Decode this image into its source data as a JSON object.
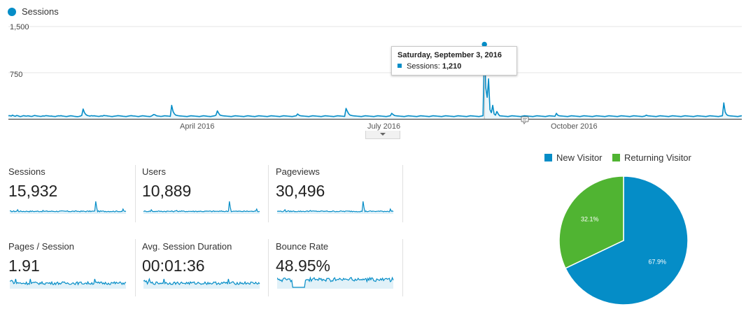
{
  "main_chart": {
    "legend_label": "Sessions",
    "legend_color": "#058dc7",
    "y_ticks": [
      "1,500",
      "750"
    ],
    "x_ticks": [
      "April 2016",
      "July 2016",
      "October 2016"
    ],
    "tooltip": {
      "date": "Saturday, September 3, 2016",
      "series_label": "Sessions:",
      "series_value": "1,210"
    }
  },
  "chart_data": {
    "type": "line",
    "title": "",
    "series": [
      {
        "name": "Sessions",
        "color": "#058dc7",
        "values": [
          50,
          52,
          45,
          60,
          48,
          42,
          55,
          50,
          40,
          38,
          45,
          52,
          48,
          44,
          50,
          46,
          42,
          40,
          48,
          55,
          50,
          46,
          44,
          40,
          42,
          48,
          45,
          52,
          50,
          48,
          44,
          46,
          42,
          40,
          38,
          45,
          50,
          48,
          52,
          46,
          44,
          40,
          38,
          42,
          46,
          50,
          48,
          44,
          40,
          38,
          36,
          40,
          45,
          55,
          160,
          100,
          70,
          55,
          50,
          45,
          52,
          48,
          50,
          46,
          44,
          40,
          42,
          48,
          45,
          55,
          52,
          50,
          46,
          44,
          40,
          38,
          42,
          45,
          48,
          52,
          50,
          48,
          45,
          42,
          40,
          38,
          42,
          46,
          50,
          52,
          48,
          46,
          44,
          40,
          38,
          42,
          46,
          50,
          48,
          45,
          42,
          40,
          38,
          42,
          55,
          70,
          65,
          50,
          46,
          44,
          40,
          42,
          46,
          50,
          48,
          46,
          44,
          40,
          220,
          120,
          80,
          60,
          55,
          50,
          48,
          46,
          44,
          42,
          40,
          38,
          42,
          46,
          50,
          48,
          46,
          44,
          42,
          40,
          38,
          42,
          46,
          50,
          48,
          45,
          42,
          40,
          38,
          42,
          46,
          50,
          60,
          130,
          90,
          60,
          55,
          50,
          48,
          46,
          44,
          42,
          40,
          38,
          42,
          46,
          50,
          48,
          46,
          44,
          42,
          40,
          38,
          42,
          46,
          50,
          48,
          45,
          42,
          40,
          38,
          42,
          46,
          50,
          48,
          46,
          44,
          42,
          40,
          38,
          42,
          46,
          50,
          48,
          46,
          44,
          42,
          40,
          38,
          42,
          46,
          50,
          48,
          46,
          44,
          42,
          40,
          38,
          42,
          46,
          50,
          80,
          60,
          50,
          48,
          46,
          44,
          42,
          40,
          38,
          42,
          46,
          50,
          48,
          46,
          44,
          42,
          40,
          38,
          42,
          46,
          50,
          48,
          46,
          44,
          42,
          40,
          38,
          42,
          46,
          50,
          48,
          46,
          44,
          42,
          40,
          170,
          120,
          80,
          60,
          55,
          50,
          48,
          46,
          44,
          42,
          40,
          38,
          42,
          46,
          50,
          48,
          46,
          44,
          42,
          40,
          38,
          42,
          46,
          50,
          48,
          46,
          44,
          42,
          40,
          38,
          42,
          46,
          50,
          90,
          70,
          55,
          50,
          48,
          46,
          44,
          42,
          40,
          38,
          42,
          46,
          50,
          48,
          46,
          44,
          42,
          40,
          38,
          42,
          46,
          50,
          48,
          46,
          44,
          42,
          40,
          38,
          42,
          46,
          50,
          48,
          46,
          44,
          42,
          40,
          38,
          42,
          46,
          50,
          48,
          46,
          44,
          42,
          40,
          38,
          42,
          46,
          50,
          48,
          46,
          44,
          42,
          40,
          38,
          42,
          46,
          50,
          48,
          46,
          44,
          42,
          40,
          38,
          42,
          46,
          50,
          1210,
          500,
          350,
          650,
          150,
          100,
          220,
          80,
          60,
          120,
          80,
          50,
          48,
          46,
          44,
          42,
          40,
          38,
          42,
          46,
          50,
          48,
          46,
          44,
          42,
          40,
          38,
          42,
          46,
          50,
          48,
          46,
          44,
          42,
          40,
          38,
          42,
          46,
          50,
          48,
          46,
          44,
          42,
          40,
          38,
          42,
          46,
          50,
          48,
          46,
          44,
          42,
          90,
          60,
          50,
          48,
          46,
          44,
          42,
          40,
          38,
          42,
          46,
          50,
          48,
          46,
          44,
          42,
          40,
          38,
          42,
          46,
          50,
          48,
          46,
          44,
          42,
          40,
          38,
          42,
          46,
          50,
          48,
          46,
          44,
          42,
          40,
          38,
          42,
          46,
          50,
          48,
          46,
          44,
          42,
          40,
          38,
          42,
          46,
          50,
          48,
          46,
          44,
          42,
          40,
          38,
          42,
          46,
          50,
          48,
          46,
          44,
          42,
          40,
          38,
          42,
          46,
          60,
          50,
          48,
          46,
          44,
          42,
          40,
          38,
          42,
          46,
          50,
          48,
          46,
          44,
          42,
          40,
          38,
          42,
          46,
          50,
          48,
          46,
          44,
          42,
          40,
          38,
          42,
          46,
          50,
          48,
          46,
          44,
          42,
          40,
          38,
          42,
          46,
          50,
          48,
          46,
          44,
          42,
          40,
          38,
          42,
          46,
          50,
          48,
          46,
          44,
          42,
          40,
          38,
          42,
          46,
          50,
          260,
          110,
          70,
          55,
          50,
          48,
          46,
          44,
          42,
          40,
          38,
          42,
          46,
          50
        ]
      }
    ],
    "ylim": [
      0,
      1500
    ],
    "y_ticks": [
      750,
      1500
    ],
    "x_tick_labels": [
      "April 2016",
      "July 2016",
      "October 2016"
    ],
    "highlight": {
      "date": "Saturday, September 3, 2016",
      "value": 1210
    },
    "grid": true,
    "legend": "top-left"
  },
  "metrics": [
    {
      "label": "Sessions",
      "value": "15,932"
    },
    {
      "label": "Users",
      "value": "10,889"
    },
    {
      "label": "Pageviews",
      "value": "30,496"
    },
    {
      "label": "Pages / Session",
      "value": "1.91"
    },
    {
      "label": "Avg. Session Duration",
      "value": "00:01:36"
    },
    {
      "label": "Bounce Rate",
      "value": "48.95%"
    }
  ],
  "pie": {
    "legend": [
      {
        "name": "New Visitor",
        "color": "#058dc7"
      },
      {
        "name": "Returning Visitor",
        "color": "#50b432"
      }
    ],
    "slices": [
      {
        "name": "New Visitor",
        "value": 67.9,
        "label": "67.9%",
        "color": "#058dc7"
      },
      {
        "name": "Returning Visitor",
        "value": 32.1,
        "label": "32.1%",
        "color": "#50b432"
      }
    ]
  }
}
